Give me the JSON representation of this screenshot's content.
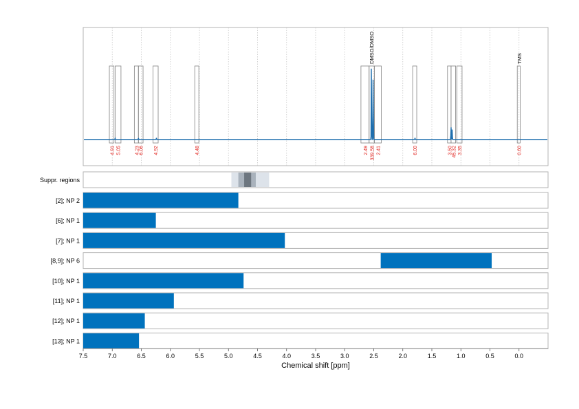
{
  "chart_data": {
    "type": "bar",
    "title": "",
    "xlabel": "Chemical shift [ppm]",
    "ylabel": "",
    "xlim": [
      7.5,
      -0.5
    ],
    "x_ticks": [
      {
        "value": 7.5,
        "label": "7.5"
      },
      {
        "value": 7.0,
        "label": "7.0"
      },
      {
        "value": 6.5,
        "label": "6.5"
      },
      {
        "value": 6.0,
        "label": "6.0"
      },
      {
        "value": 5.5,
        "label": "5.5"
      },
      {
        "value": 5.0,
        "label": "5.0"
      },
      {
        "value": 4.5,
        "label": "4.5"
      },
      {
        "value": 4.0,
        "label": "4.0"
      },
      {
        "value": 3.5,
        "label": "3.5"
      },
      {
        "value": 3.0,
        "label": "3.0"
      },
      {
        "value": 2.5,
        "label": "2.5"
      },
      {
        "value": 2.0,
        "label": "2.0"
      },
      {
        "value": 1.5,
        "label": "1.5"
      },
      {
        "value": 1.0,
        "label": "1.0"
      },
      {
        "value": 0.5,
        "label": "0.5"
      },
      {
        "value": 0.0,
        "label": "0.0"
      }
    ],
    "spectrum": {
      "baseline": 0,
      "peaks": [
        {
          "ppm": 2.54,
          "height": 100
        },
        {
          "ppm": 2.51,
          "height": 92
        },
        {
          "ppm": 1.17,
          "height": 17
        },
        {
          "ppm": 1.15,
          "height": 13
        },
        {
          "ppm": 1.79,
          "height": 2
        },
        {
          "ppm": 6.24,
          "height": 2
        },
        {
          "ppm": 6.55,
          "height": 2
        },
        {
          "ppm": 6.95,
          "height": 1.5
        }
      ],
      "ylim": [
        -10,
        140
      ]
    },
    "integration_regions": [
      {
        "from": 7.05,
        "to": 6.97,
        "label": "4.91"
      },
      {
        "from": 6.95,
        "to": 6.85,
        "label": "5.05"
      },
      {
        "from": 6.62,
        "to": 6.55,
        "label": "4.23"
      },
      {
        "from": 6.55,
        "to": 6.47,
        "label": "6.06"
      },
      {
        "from": 6.3,
        "to": 6.21,
        "label": "4.92"
      },
      {
        "from": 5.58,
        "to": 5.51,
        "label": "4.48"
      },
      {
        "from": 2.72,
        "to": 2.58,
        "label": "2.49"
      },
      {
        "from": 2.58,
        "to": 2.49,
        "label": "339.58"
      },
      {
        "from": 2.49,
        "to": 2.37,
        "label": "2.41"
      },
      {
        "from": 1.83,
        "to": 1.76,
        "label": "6.00"
      },
      {
        "from": 1.23,
        "to": 1.17,
        "label": "3.50"
      },
      {
        "from": 1.17,
        "to": 1.09,
        "label": "45.32"
      },
      {
        "from": 1.07,
        "to": 0.98,
        "label": "3.35"
      },
      {
        "from": 0.03,
        "to": -0.02,
        "label": "0.60"
      }
    ],
    "reference_labels": [
      {
        "ppm": 2.54,
        "label": "DMSO/DMSO"
      },
      {
        "ppm": 0.0,
        "label": "TMS"
      }
    ],
    "suppression_regions": {
      "label": "Suppr. regions",
      "bands": [
        {
          "from": 4.95,
          "to": 4.3,
          "shade": "#dde3ea"
        },
        {
          "from": 4.83,
          "to": 4.53,
          "shade": "#a9b2bc"
        },
        {
          "from": 4.73,
          "to": 4.61,
          "shade": "#6d767f"
        }
      ]
    },
    "series": [
      {
        "name": "[2]; NP 2",
        "from": 7.5,
        "to": 4.83
      },
      {
        "name": "[6]; NP 1",
        "from": 7.5,
        "to": 6.25
      },
      {
        "name": "[7]; NP 1",
        "from": 7.5,
        "to": 4.03
      },
      {
        "name": "[8,9]; NP 6",
        "from": 2.38,
        "to": 0.47
      },
      {
        "name": "[10]; NP 1",
        "from": 7.5,
        "to": 4.74
      },
      {
        "name": "[11]; NP 1",
        "from": 7.5,
        "to": 5.94
      },
      {
        "name": "[12]; NP 1",
        "from": 7.5,
        "to": 6.44
      },
      {
        "name": "[13]; NP 1",
        "from": 7.5,
        "to": 6.54
      }
    ],
    "colors": {
      "spectrum": "#1f6fae",
      "bar": "#0072bd",
      "region_label": "#e0201b",
      "panel_border": "#b3b3b3",
      "grid": "#c8c8c8"
    }
  }
}
